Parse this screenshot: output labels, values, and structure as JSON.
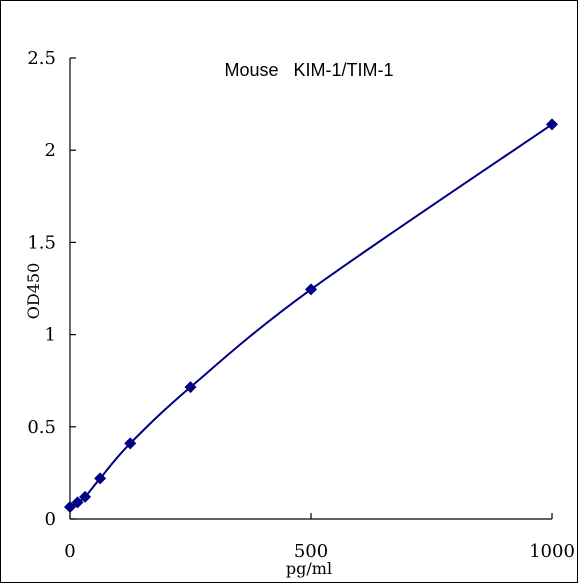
{
  "chart_data": {
    "type": "scatter",
    "title": "Mouse   KIM-1/TIM-1",
    "xlabel": "pg/ml",
    "ylabel": "OD450",
    "xlim": [
      0,
      1000
    ],
    "ylim": [
      0,
      2.5
    ],
    "x_ticks": [
      0,
      500,
      1000
    ],
    "x_tick_labels": [
      "0",
      "500",
      "1000"
    ],
    "y_ticks": [
      0,
      0.5,
      1,
      1.5,
      2,
      2.5
    ],
    "y_tick_labels": [
      "0",
      "0.5",
      "1",
      "1.5",
      "2",
      "2.5"
    ],
    "grid": false,
    "legend": "none",
    "fit_line": true,
    "color": "#000080",
    "series": [
      {
        "x": [
          0,
          15.6,
          31.25,
          62.5,
          125,
          250,
          500,
          1000
        ],
        "y": [
          0.065,
          0.09,
          0.12,
          0.22,
          0.41,
          0.715,
          1.245,
          2.14
        ]
      }
    ]
  }
}
